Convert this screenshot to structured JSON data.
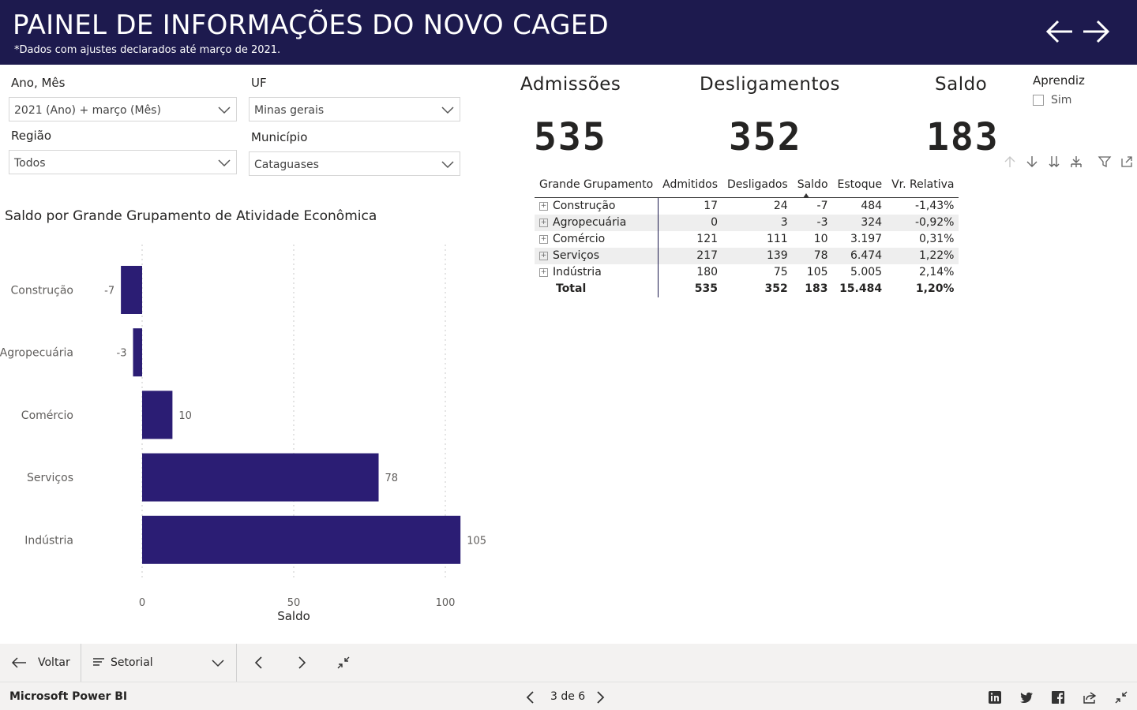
{
  "header": {
    "title": "PAINEL DE INFORMAÇÕES DO NOVO CAGED",
    "subtitle": "*Dados com ajustes declarados até março de 2021.",
    "back_icon": "arrow-left-icon",
    "forward_icon": "arrow-right-icon"
  },
  "slicers": {
    "ano_mes": {
      "label": "Ano, Mês",
      "value": "2021 (Ano) + março (Mês)"
    },
    "uf": {
      "label": "UF",
      "value": "Minas gerais"
    },
    "regiao": {
      "label": "Região",
      "value": "Todos"
    },
    "municipio": {
      "label": "Município",
      "value": "Cataguases"
    }
  },
  "kpis": {
    "admissoes": {
      "label": "Admissões",
      "value": "535"
    },
    "desligamentos": {
      "label": "Desligamentos",
      "value": "352"
    },
    "saldo": {
      "label": "Saldo",
      "value": "183"
    }
  },
  "aprendiz": {
    "label": "Aprendiz",
    "option": "Sim",
    "checked": false
  },
  "matrix": {
    "headers": [
      "Grande Grupamento",
      "Admitidos",
      "Desligados",
      "Saldo",
      "Estoque",
      "Vr. Relativa"
    ],
    "rows": [
      [
        "Construção",
        "17",
        "24",
        "-7",
        "484",
        "-1,43%"
      ],
      [
        "Agropecuária",
        "0",
        "3",
        "-3",
        "324",
        "-0,92%"
      ],
      [
        "Comércio",
        "121",
        "111",
        "10",
        "3.197",
        "0,31%"
      ],
      [
        "Serviços",
        "217",
        "139",
        "78",
        "6.474",
        "1,22%"
      ],
      [
        "Indústria",
        "180",
        "75",
        "105",
        "5.005",
        "2,14%"
      ]
    ],
    "total": [
      "Total",
      "535",
      "352",
      "183",
      "15.484",
      "1,20%"
    ]
  },
  "chart_data": {
    "type": "bar",
    "orientation": "horizontal",
    "title": "Saldo por Grande Grupamento de Atividade Econômica",
    "xlabel": "Saldo",
    "ylabel": "",
    "categories": [
      "Construção",
      "Agropecuária",
      "Comércio",
      "Serviços",
      "Indústria"
    ],
    "values": [
      -7,
      -3,
      10,
      78,
      105
    ],
    "xlim": [
      -7,
      105
    ],
    "xticks": [
      0,
      50,
      100
    ],
    "grid": true,
    "color": "#2b1d74"
  },
  "bottom_bar": {
    "back_label": "Voltar",
    "page_selector": "Setorial"
  },
  "footer": {
    "brand": "Microsoft Power BI",
    "pager": "3 de 6"
  },
  "colors": {
    "header_bg": "#1d1a4e",
    "bar": "#2b1d74"
  }
}
